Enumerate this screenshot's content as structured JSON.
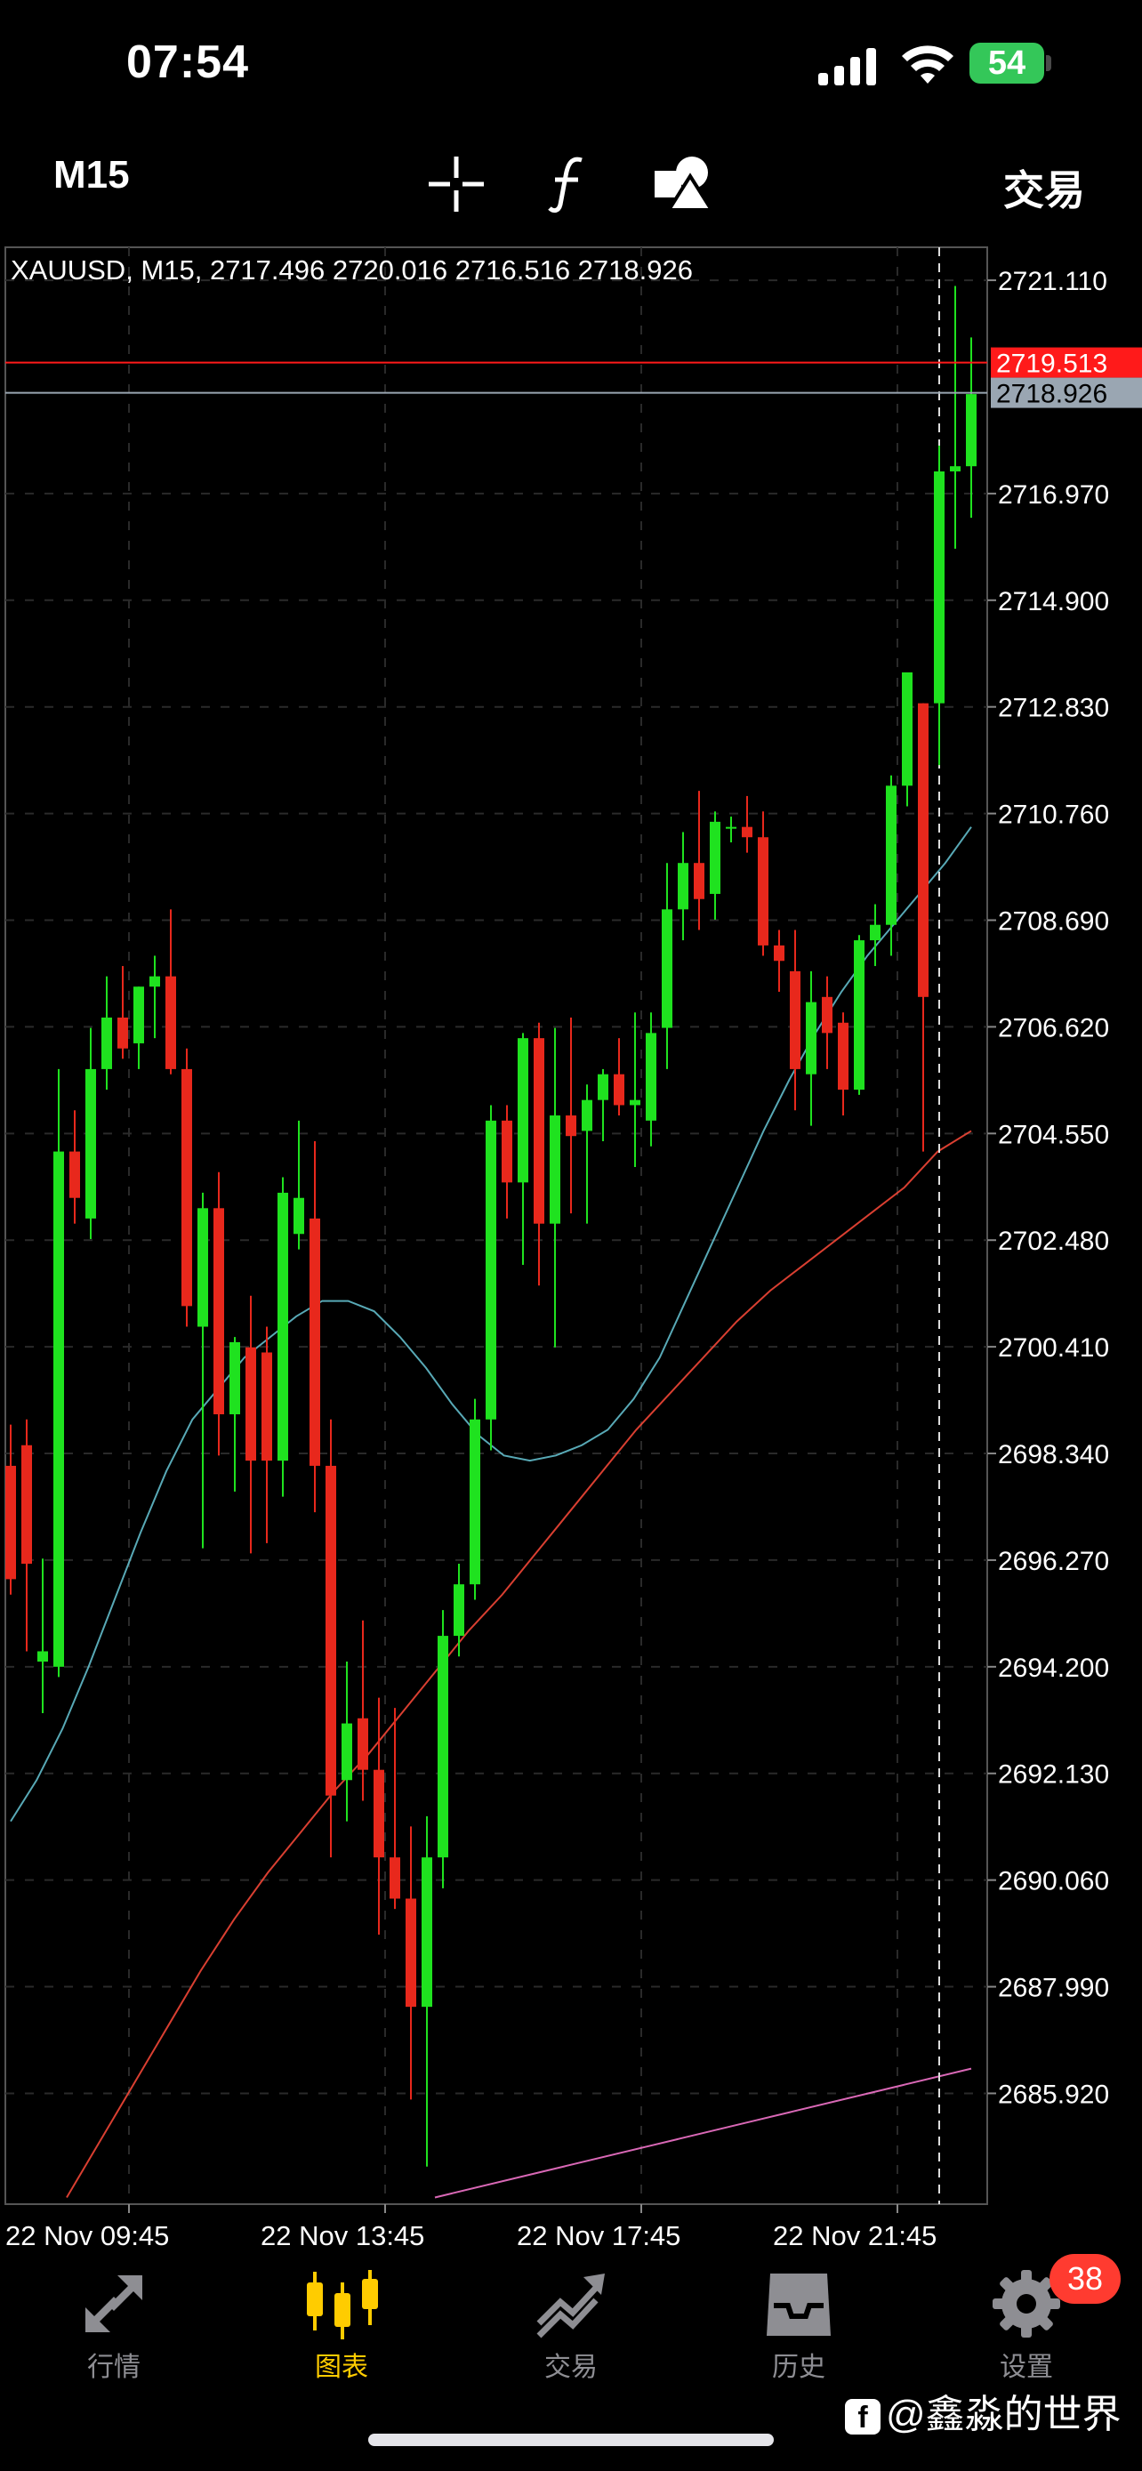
{
  "status_bar": {
    "time": "07:54",
    "battery": "54"
  },
  "toolbar": {
    "timeframe": "M15",
    "trade_label": "交易"
  },
  "chart_data": {
    "type": "candlestick",
    "title": "XAUUSD, M15, 2717.496 2720.016 2716.516 2718.926",
    "y_ticks": [
      "2721.110",
      "2716.970",
      "2714.900",
      "2712.830",
      "2710.760",
      "2708.690",
      "2706.620",
      "2704.550",
      "2702.480",
      "2700.410",
      "2698.340",
      "2696.270",
      "2694.200",
      "2692.130",
      "2690.060",
      "2687.990",
      "2685.920"
    ],
    "ylim": [
      2683.77,
      2721.75
    ],
    "x_ticks": [
      "22 Nov 09:45",
      "22 Nov 13:45",
      "22 Nov 17:45",
      "22 Nov 21:45"
    ],
    "price_labels": {
      "ask": "2719.513",
      "bid": "2718.926"
    },
    "colors": {
      "up": "#1fe21f",
      "down": "#e8281c",
      "ma_fast": "#67c7d6",
      "ma_slow": "#ff4a3a",
      "ma_long": "#ff7ad6",
      "ask": "#ff1a1a",
      "bid": "#9aa6b2"
    },
    "candles": [
      {
        "o": 2698.1,
        "h": 2698.9,
        "l": 2695.6,
        "c": 2695.9
      },
      {
        "o": 2698.5,
        "h": 2699.0,
        "l": 2694.5,
        "c": 2696.2
      },
      {
        "o": 2694.3,
        "h": 2696.3,
        "l": 2693.3,
        "c": 2694.5
      },
      {
        "o": 2694.2,
        "h": 2705.8,
        "l": 2694.0,
        "c": 2704.2
      },
      {
        "o": 2704.2,
        "h": 2705.0,
        "l": 2702.8,
        "c": 2703.3
      },
      {
        "o": 2702.9,
        "h": 2706.6,
        "l": 2702.5,
        "c": 2705.8
      },
      {
        "o": 2705.8,
        "h": 2707.6,
        "l": 2705.4,
        "c": 2706.8
      },
      {
        "o": 2706.8,
        "h": 2707.8,
        "l": 2706.0,
        "c": 2706.2
      },
      {
        "o": 2706.3,
        "h": 2707.4,
        "l": 2705.8,
        "c": 2707.4
      },
      {
        "o": 2707.4,
        "h": 2708.0,
        "l": 2706.4,
        "c": 2707.6
      },
      {
        "o": 2707.6,
        "h": 2708.9,
        "l": 2705.7,
        "c": 2705.8
      },
      {
        "o": 2705.8,
        "h": 2706.2,
        "l": 2700.8,
        "c": 2701.2
      },
      {
        "o": 2700.8,
        "h": 2703.4,
        "l": 2696.5,
        "c": 2703.1
      },
      {
        "o": 2703.1,
        "h": 2703.8,
        "l": 2698.3,
        "c": 2699.1
      },
      {
        "o": 2699.1,
        "h": 2700.6,
        "l": 2697.6,
        "c": 2700.5
      },
      {
        "o": 2700.4,
        "h": 2701.4,
        "l": 2696.4,
        "c": 2698.2
      },
      {
        "o": 2700.3,
        "h": 2700.8,
        "l": 2696.6,
        "c": 2698.2
      },
      {
        "o": 2698.2,
        "h": 2703.7,
        "l": 2697.5,
        "c": 2703.4
      },
      {
        "o": 2702.6,
        "h": 2704.8,
        "l": 2702.3,
        "c": 2703.3
      },
      {
        "o": 2702.9,
        "h": 2704.4,
        "l": 2697.2,
        "c": 2698.1
      },
      {
        "o": 2698.1,
        "h": 2699.0,
        "l": 2690.5,
        "c": 2691.7
      },
      {
        "o": 2692.0,
        "h": 2694.3,
        "l": 2691.2,
        "c": 2693.1
      },
      {
        "o": 2693.2,
        "h": 2695.1,
        "l": 2691.6,
        "c": 2692.2
      },
      {
        "o": 2692.2,
        "h": 2693.6,
        "l": 2689.0,
        "c": 2690.5
      },
      {
        "o": 2690.5,
        "h": 2693.4,
        "l": 2689.5,
        "c": 2689.7
      },
      {
        "o": 2689.7,
        "h": 2691.1,
        "l": 2685.8,
        "c": 2687.6
      },
      {
        "o": 2687.6,
        "h": 2691.3,
        "l": 2684.5,
        "c": 2690.5
      },
      {
        "o": 2690.5,
        "h": 2695.3,
        "l": 2689.9,
        "c": 2694.8
      },
      {
        "o": 2694.8,
        "h": 2696.2,
        "l": 2694.4,
        "c": 2695.8
      },
      {
        "o": 2695.8,
        "h": 2699.4,
        "l": 2695.5,
        "c": 2699.0
      },
      {
        "o": 2699.0,
        "h": 2705.1,
        "l": 2698.4,
        "c": 2704.8
      },
      {
        "o": 2704.8,
        "h": 2705.1,
        "l": 2702.9,
        "c": 2703.6
      },
      {
        "o": 2703.6,
        "h": 2706.5,
        "l": 2702.0,
        "c": 2706.4
      },
      {
        "o": 2706.4,
        "h": 2706.7,
        "l": 2701.6,
        "c": 2702.8
      },
      {
        "o": 2702.8,
        "h": 2706.6,
        "l": 2700.4,
        "c": 2704.9
      },
      {
        "o": 2704.9,
        "h": 2706.8,
        "l": 2703.0,
        "c": 2704.5
      },
      {
        "o": 2704.6,
        "h": 2705.5,
        "l": 2702.8,
        "c": 2705.2
      },
      {
        "o": 2705.2,
        "h": 2705.8,
        "l": 2704.4,
        "c": 2705.7
      },
      {
        "o": 2705.7,
        "h": 2706.4,
        "l": 2704.9,
        "c": 2705.1
      },
      {
        "o": 2705.1,
        "h": 2706.9,
        "l": 2703.9,
        "c": 2705.2
      },
      {
        "o": 2704.8,
        "h": 2706.9,
        "l": 2704.3,
        "c": 2706.5
      },
      {
        "o": 2706.6,
        "h": 2709.8,
        "l": 2705.8,
        "c": 2708.9
      },
      {
        "o": 2708.9,
        "h": 2710.4,
        "l": 2708.3,
        "c": 2709.8
      },
      {
        "o": 2709.8,
        "h": 2711.2,
        "l": 2708.5,
        "c": 2709.1
      },
      {
        "o": 2709.2,
        "h": 2710.8,
        "l": 2708.7,
        "c": 2710.6
      },
      {
        "o": 2710.5,
        "h": 2710.7,
        "l": 2710.2,
        "c": 2710.5
      },
      {
        "o": 2710.5,
        "h": 2711.1,
        "l": 2710.0,
        "c": 2710.3
      },
      {
        "o": 2710.3,
        "h": 2710.8,
        "l": 2708.0,
        "c": 2708.2
      },
      {
        "o": 2708.2,
        "h": 2708.5,
        "l": 2707.3,
        "c": 2707.9
      },
      {
        "o": 2707.7,
        "h": 2708.5,
        "l": 2705.0,
        "c": 2705.8
      },
      {
        "o": 2705.7,
        "h": 2707.7,
        "l": 2704.7,
        "c": 2707.1
      },
      {
        "o": 2707.2,
        "h": 2707.6,
        "l": 2705.8,
        "c": 2706.5
      },
      {
        "o": 2706.7,
        "h": 2706.9,
        "l": 2704.9,
        "c": 2705.4
      },
      {
        "o": 2705.4,
        "h": 2708.4,
        "l": 2705.3,
        "c": 2708.3
      },
      {
        "o": 2708.3,
        "h": 2709.0,
        "l": 2707.8,
        "c": 2708.6
      },
      {
        "o": 2708.6,
        "h": 2711.5,
        "l": 2708.0,
        "c": 2711.3
      },
      {
        "o": 2711.3,
        "h": 2713.4,
        "l": 2710.9,
        "c": 2713.5
      },
      {
        "o": 2712.9,
        "h": 2712.9,
        "l": 2704.2,
        "c": 2707.2
      },
      {
        "o": 2712.9,
        "h": 2717.9,
        "l": 2711.7,
        "c": 2717.4
      },
      {
        "o": 2717.4,
        "h": 2721.0,
        "l": 2715.9,
        "c": 2717.5
      },
      {
        "o": 2717.5,
        "h": 2720.0,
        "l": 2716.5,
        "c": 2718.9
      }
    ],
    "ma_fast": [
      2691.2,
      2692.0,
      2693.0,
      2694.2,
      2695.5,
      2696.8,
      2698.0,
      2699.0,
      2699.6,
      2700.2,
      2700.6,
      2701.0,
      2701.3,
      2701.3,
      2701.1,
      2700.6,
      2700.0,
      2699.3,
      2698.7,
      2698.3,
      2698.2,
      2698.3,
      2698.5,
      2698.8,
      2699.4,
      2700.2,
      2701.3,
      2702.4,
      2703.5,
      2704.6,
      2705.6,
      2706.5,
      2707.3,
      2708.0,
      2708.6,
      2709.2,
      2709.8,
      2710.5
    ],
    "ma_slow": [
      2683.9,
      2685.0,
      2686.1,
      2687.2,
      2688.3,
      2689.3,
      2690.2,
      2691.0,
      2691.8,
      2692.5,
      2693.3,
      2694.1,
      2694.9,
      2695.6,
      2696.4,
      2697.2,
      2698.0,
      2698.8,
      2699.5,
      2700.2,
      2700.9,
      2701.5,
      2702.0,
      2702.5,
      2703.0,
      2703.5,
      2704.2,
      2704.6
    ],
    "ma_long": [
      2683.9,
      2684.4,
      2684.9,
      2685.4,
      2685.9,
      2686.4
    ]
  },
  "nav": [
    {
      "label": "行情",
      "icon": "quotes-icon"
    },
    {
      "label": "图表",
      "icon": "chart-icon"
    },
    {
      "label": "交易",
      "icon": "trade-icon"
    },
    {
      "label": "历史",
      "icon": "history-icon"
    },
    {
      "label": "设置",
      "icon": "settings-icon"
    }
  ],
  "badge": "38",
  "watermark": "@鑫淼的世界"
}
